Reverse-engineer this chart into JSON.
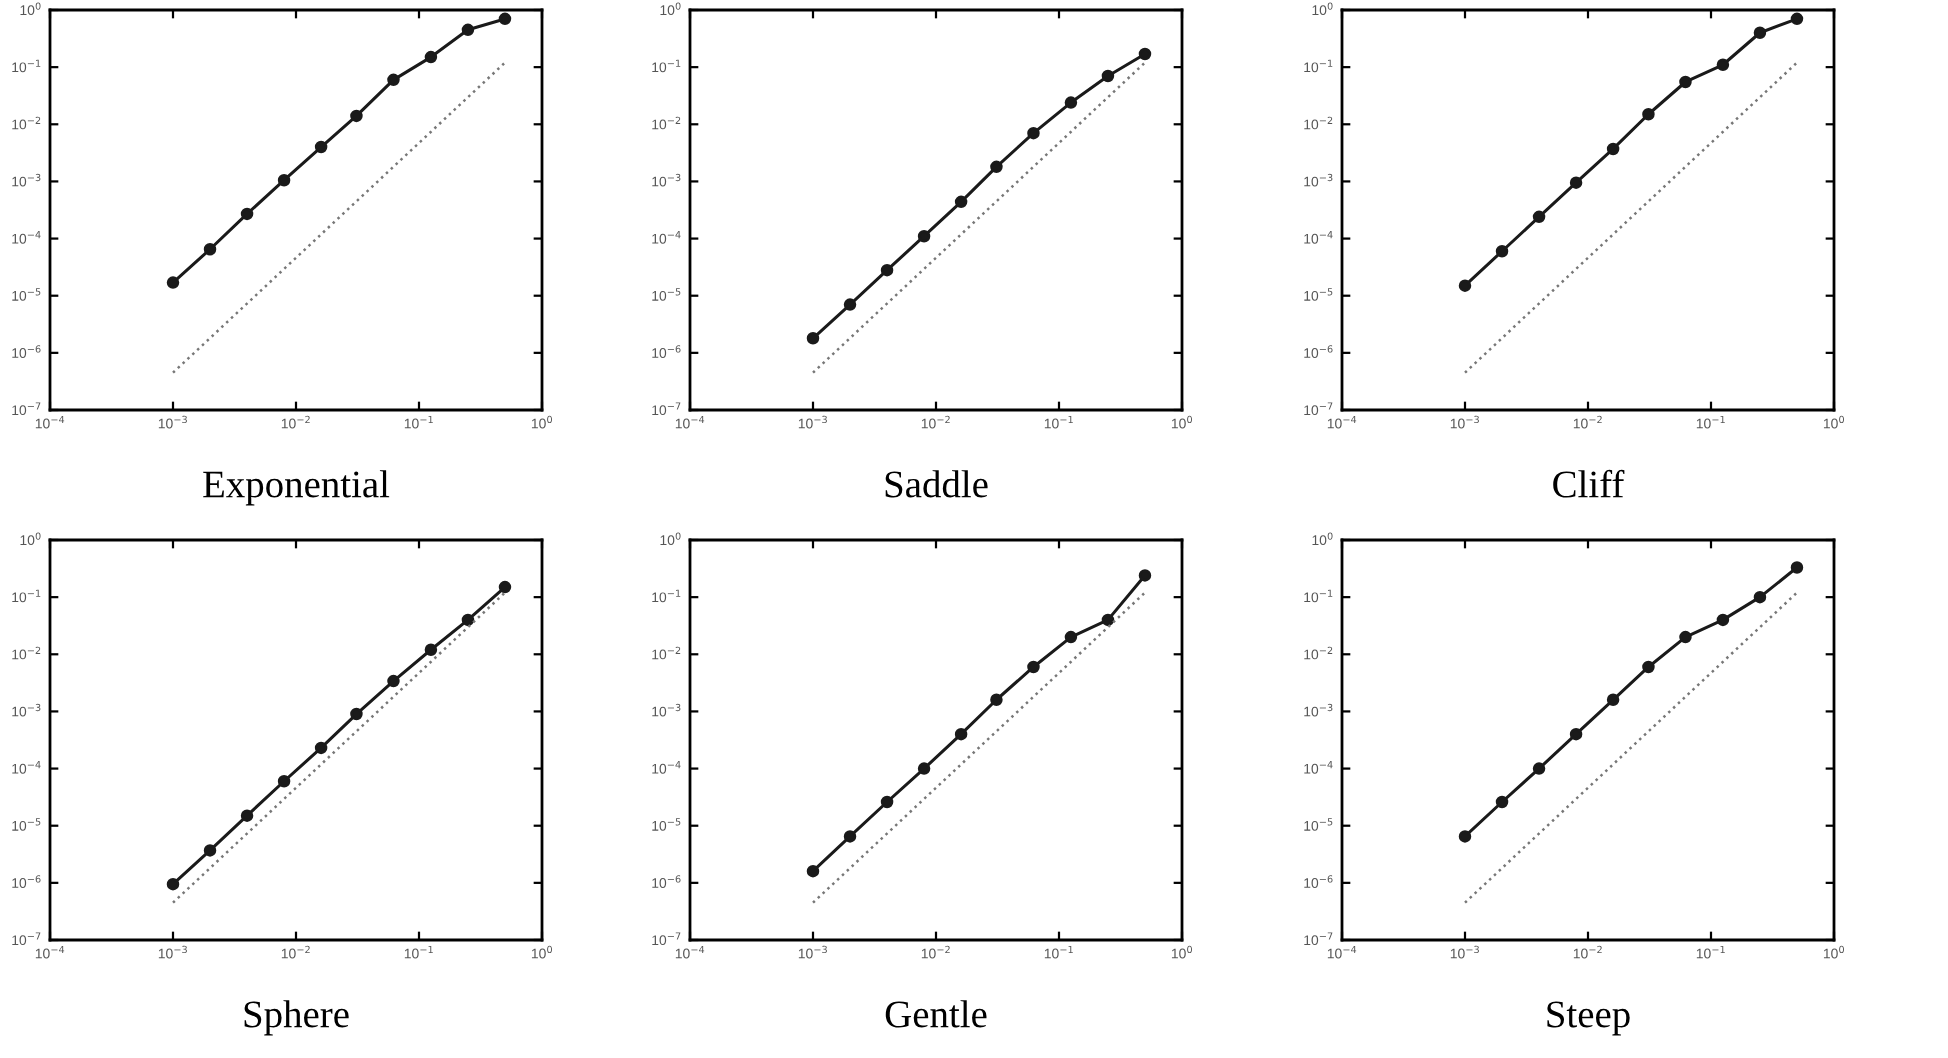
{
  "chart_data": [
    {
      "type": "line",
      "xlabel": "Exponential",
      "log": "xy",
      "grid": false,
      "marker": "circle",
      "xlim": [
        0.0001,
        1
      ],
      "ylim": [
        1e-07,
        1
      ],
      "xticks": [
        {
          "value": 0.0001,
          "label": "10$^{−4}$"
        },
        {
          "value": 0.001,
          "label": "10$^{−3}$"
        },
        {
          "value": 0.01,
          "label": "10$^{−2}$"
        },
        {
          "value": 0.1,
          "label": "10$^{−1}$"
        },
        {
          "value": 1,
          "label": "10$^{0}$"
        }
      ],
      "yticks": [
        {
          "value": 1e-07,
          "label": "10$^{−7}$"
        },
        {
          "value": 1e-06,
          "label": "10$^{−6}$"
        },
        {
          "value": 1e-05,
          "label": "10$^{−5}$"
        },
        {
          "value": 0.0001,
          "label": "10$^{−4}$"
        },
        {
          "value": 0.001,
          "label": "10$^{−3}$"
        },
        {
          "value": 0.01,
          "label": "10$^{−2}$"
        },
        {
          "value": 0.1,
          "label": "10$^{−1}$"
        },
        {
          "value": 1,
          "label": "10$^{0}$"
        }
      ],
      "series": [
        {
          "color": "#1a1a1a",
          "line_style": "solid",
          "x": [
            0.001,
            0.002,
            0.004,
            0.008,
            0.016,
            0.031,
            0.062,
            0.125,
            0.25,
            0.5
          ],
          "values": [
            1.7e-05,
            6.5e-05,
            0.00027,
            0.00105,
            0.004,
            0.014,
            0.06,
            0.15,
            0.45,
            0.7
          ]
        },
        {
          "color": "#777777",
          "line_style": "dotted",
          "marker": "none",
          "x": [
            0.001,
            0.5
          ],
          "values": [
            4.5e-07,
            0.12
          ]
        }
      ]
    },
    {
      "type": "line",
      "xlabel": "Saddle",
      "log": "xy",
      "grid": false,
      "marker": "circle",
      "xlim": [
        0.0001,
        1
      ],
      "ylim": [
        1e-07,
        1
      ],
      "xticks": [
        {
          "value": 0.0001,
          "label": "10$^{−4}$"
        },
        {
          "value": 0.001,
          "label": "10$^{−3}$"
        },
        {
          "value": 0.01,
          "label": "10$^{−2}$"
        },
        {
          "value": 0.1,
          "label": "10$^{−1}$"
        },
        {
          "value": 1,
          "label": "10$^{0}$"
        }
      ],
      "yticks": [
        {
          "value": 1e-07,
          "label": "10$^{−7}$"
        },
        {
          "value": 1e-06,
          "label": "10$^{−6}$"
        },
        {
          "value": 1e-05,
          "label": "10$^{−5}$"
        },
        {
          "value": 0.0001,
          "label": "10$^{−4}$"
        },
        {
          "value": 0.001,
          "label": "10$^{−3}$"
        },
        {
          "value": 0.01,
          "label": "10$^{−2}$"
        },
        {
          "value": 0.1,
          "label": "10$^{−1}$"
        },
        {
          "value": 1,
          "label": "10$^{0}$"
        }
      ],
      "series": [
        {
          "color": "#1a1a1a",
          "line_style": "solid",
          "x": [
            0.001,
            0.002,
            0.004,
            0.008,
            0.016,
            0.031,
            0.062,
            0.125,
            0.25,
            0.5
          ],
          "values": [
            1.8e-06,
            7e-06,
            2.8e-05,
            0.00011,
            0.00044,
            0.0018,
            0.007,
            0.024,
            0.07,
            0.17
          ]
        },
        {
          "color": "#777777",
          "line_style": "dotted",
          "marker": "none",
          "x": [
            0.001,
            0.5
          ],
          "values": [
            4.5e-07,
            0.12
          ]
        }
      ]
    },
    {
      "type": "line",
      "xlabel": "Cliff",
      "log": "xy",
      "grid": false,
      "marker": "circle",
      "xlim": [
        0.0001,
        1
      ],
      "ylim": [
        1e-07,
        1
      ],
      "xticks": [
        {
          "value": 0.0001,
          "label": "10$^{−4}$"
        },
        {
          "value": 0.001,
          "label": "10$^{−3}$"
        },
        {
          "value": 0.01,
          "label": "10$^{−2}$"
        },
        {
          "value": 0.1,
          "label": "10$^{−1}$"
        },
        {
          "value": 1,
          "label": "10$^{0}$"
        }
      ],
      "yticks": [
        {
          "value": 1e-07,
          "label": "10$^{−7}$"
        },
        {
          "value": 1e-06,
          "label": "10$^{−6}$"
        },
        {
          "value": 1e-05,
          "label": "10$^{−5}$"
        },
        {
          "value": 0.0001,
          "label": "10$^{−4}$"
        },
        {
          "value": 0.001,
          "label": "10$^{−3}$"
        },
        {
          "value": 0.01,
          "label": "10$^{−2}$"
        },
        {
          "value": 0.1,
          "label": "10$^{−1}$"
        },
        {
          "value": 1,
          "label": "10$^{0}$"
        }
      ],
      "series": [
        {
          "color": "#1a1a1a",
          "line_style": "solid",
          "x": [
            0.001,
            0.002,
            0.004,
            0.008,
            0.016,
            0.031,
            0.062,
            0.125,
            0.25,
            0.5
          ],
          "values": [
            1.5e-05,
            6e-05,
            0.00024,
            0.00095,
            0.0037,
            0.015,
            0.055,
            0.11,
            0.4,
            0.7
          ]
        },
        {
          "color": "#777777",
          "line_style": "dotted",
          "marker": "none",
          "x": [
            0.001,
            0.5
          ],
          "values": [
            4.5e-07,
            0.12
          ]
        }
      ]
    },
    {
      "type": "line",
      "xlabel": "Sphere",
      "log": "xy",
      "grid": false,
      "marker": "circle",
      "xlim": [
        0.0001,
        1
      ],
      "ylim": [
        1e-07,
        1
      ],
      "xticks": [
        {
          "value": 0.0001,
          "label": "10$^{−4}$"
        },
        {
          "value": 0.001,
          "label": "10$^{−3}$"
        },
        {
          "value": 0.01,
          "label": "10$^{−2}$"
        },
        {
          "value": 0.1,
          "label": "10$^{−1}$"
        },
        {
          "value": 1,
          "label": "10$^{0}$"
        }
      ],
      "yticks": [
        {
          "value": 1e-07,
          "label": "10$^{−7}$"
        },
        {
          "value": 1e-06,
          "label": "10$^{−6}$"
        },
        {
          "value": 1e-05,
          "label": "10$^{−5}$"
        },
        {
          "value": 0.0001,
          "label": "10$^{−4}$"
        },
        {
          "value": 0.001,
          "label": "10$^{−3}$"
        },
        {
          "value": 0.01,
          "label": "10$^{−2}$"
        },
        {
          "value": 0.1,
          "label": "10$^{−1}$"
        },
        {
          "value": 1,
          "label": "10$^{0}$"
        }
      ],
      "series": [
        {
          "color": "#1a1a1a",
          "line_style": "solid",
          "x": [
            0.001,
            0.002,
            0.004,
            0.008,
            0.016,
            0.031,
            0.062,
            0.125,
            0.25,
            0.5
          ],
          "values": [
            9.5e-07,
            3.7e-06,
            1.5e-05,
            6e-05,
            0.00023,
            0.0009,
            0.0034,
            0.012,
            0.04,
            0.15
          ]
        },
        {
          "color": "#777777",
          "line_style": "dotted",
          "marker": "none",
          "x": [
            0.001,
            0.5
          ],
          "values": [
            4.5e-07,
            0.12
          ]
        }
      ]
    },
    {
      "type": "line",
      "xlabel": "Gentle",
      "log": "xy",
      "grid": false,
      "marker": "circle",
      "xlim": [
        0.0001,
        1
      ],
      "ylim": [
        1e-07,
        1
      ],
      "xticks": [
        {
          "value": 0.0001,
          "label": "10$^{−4}$"
        },
        {
          "value": 0.001,
          "label": "10$^{−3}$"
        },
        {
          "value": 0.01,
          "label": "10$^{−2}$"
        },
        {
          "value": 0.1,
          "label": "10$^{−1}$"
        },
        {
          "value": 1,
          "label": "10$^{0}$"
        }
      ],
      "yticks": [
        {
          "value": 1e-07,
          "label": "10$^{−7}$"
        },
        {
          "value": 1e-06,
          "label": "10$^{−6}$"
        },
        {
          "value": 1e-05,
          "label": "10$^{−5}$"
        },
        {
          "value": 0.0001,
          "label": "10$^{−4}$"
        },
        {
          "value": 0.001,
          "label": "10$^{−3}$"
        },
        {
          "value": 0.01,
          "label": "10$^{−2}$"
        },
        {
          "value": 0.1,
          "label": "10$^{−1}$"
        },
        {
          "value": 1,
          "label": "10$^{0}$"
        }
      ],
      "series": [
        {
          "color": "#1a1a1a",
          "line_style": "solid",
          "x": [
            0.001,
            0.002,
            0.004,
            0.008,
            0.016,
            0.031,
            0.062,
            0.125,
            0.25,
            0.5
          ],
          "values": [
            1.6e-06,
            6.5e-06,
            2.6e-05,
            0.0001,
            0.0004,
            0.0016,
            0.006,
            0.02,
            0.04,
            0.24
          ]
        },
        {
          "color": "#777777",
          "line_style": "dotted",
          "marker": "none",
          "x": [
            0.001,
            0.5
          ],
          "values": [
            4.5e-07,
            0.12
          ]
        }
      ]
    },
    {
      "type": "line",
      "xlabel": "Steep",
      "log": "xy",
      "grid": false,
      "marker": "circle",
      "xlim": [
        0.0001,
        1
      ],
      "ylim": [
        1e-07,
        1
      ],
      "xticks": [
        {
          "value": 0.0001,
          "label": "10$^{−4}$"
        },
        {
          "value": 0.001,
          "label": "10$^{−3}$"
        },
        {
          "value": 0.01,
          "label": "10$^{−2}$"
        },
        {
          "value": 0.1,
          "label": "10$^{−1}$"
        },
        {
          "value": 1,
          "label": "10$^{0}$"
        }
      ],
      "yticks": [
        {
          "value": 1e-07,
          "label": "10$^{−7}$"
        },
        {
          "value": 1e-06,
          "label": "10$^{−6}$"
        },
        {
          "value": 1e-05,
          "label": "10$^{−5}$"
        },
        {
          "value": 0.0001,
          "label": "10$^{−4}$"
        },
        {
          "value": 0.001,
          "label": "10$^{−3}$"
        },
        {
          "value": 0.01,
          "label": "10$^{−2}$"
        },
        {
          "value": 0.1,
          "label": "10$^{−1}$"
        },
        {
          "value": 1,
          "label": "10$^{0}$"
        }
      ],
      "series": [
        {
          "color": "#1a1a1a",
          "line_style": "solid",
          "x": [
            0.001,
            0.002,
            0.004,
            0.008,
            0.016,
            0.031,
            0.062,
            0.125,
            0.25,
            0.5
          ],
          "values": [
            6.5e-06,
            2.6e-05,
            0.0001,
            0.0004,
            0.0016,
            0.006,
            0.02,
            0.04,
            0.1,
            0.33
          ]
        },
        {
          "color": "#777777",
          "line_style": "dotted",
          "marker": "none",
          "x": [
            0.001,
            0.5
          ],
          "values": [
            4.5e-07,
            0.12
          ]
        }
      ]
    }
  ]
}
